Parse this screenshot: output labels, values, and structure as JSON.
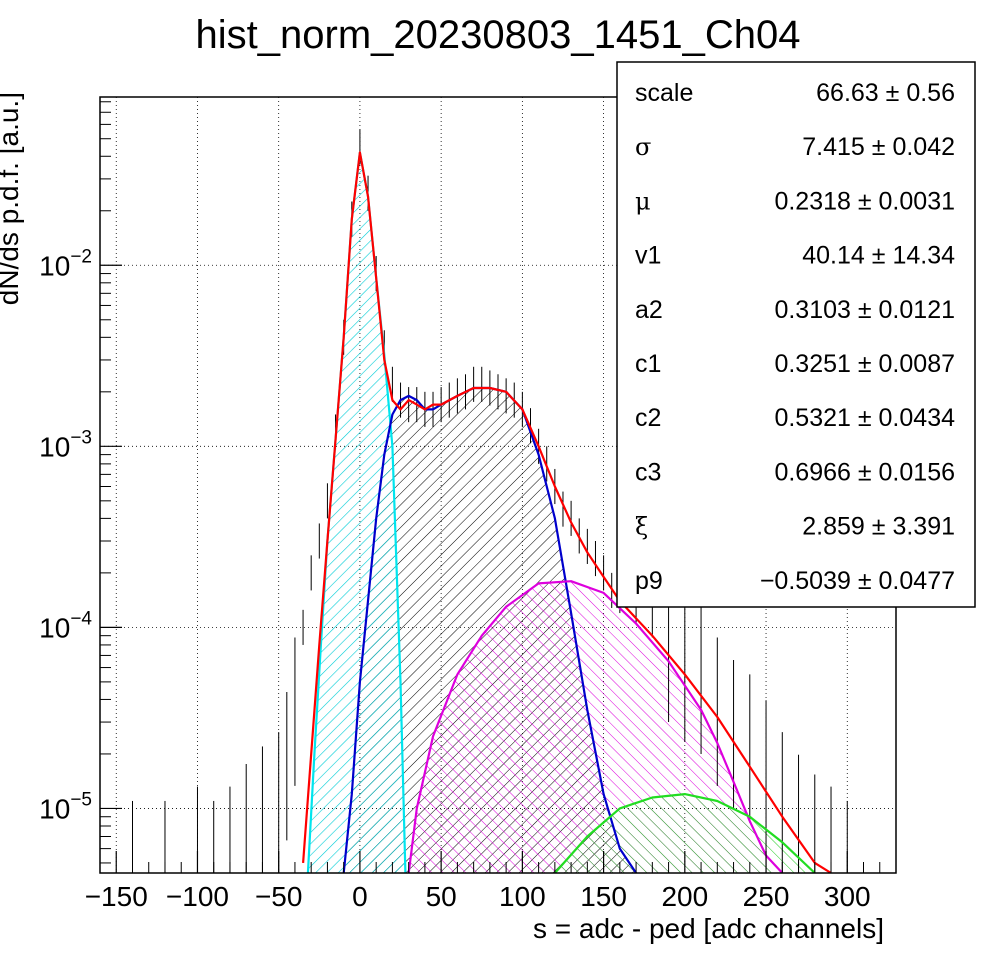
{
  "chart_data": {
    "type": "line",
    "title": "hist_norm_20230803_1451_Ch04",
    "xlabel": "s = adc - ped [adc channels]",
    "ylabel": "dN/ds p.d.f. [a.u.]",
    "xlim": [
      -160,
      330
    ],
    "ylim": [
      4.4e-06,
      0.085
    ],
    "yscale": "log",
    "grid": true,
    "x_ticks": [
      -150,
      -100,
      -50,
      0,
      50,
      100,
      150,
      200,
      250,
      300
    ],
    "x_tick_labels": [
      "−150",
      "−100",
      "−50",
      "0",
      "50",
      "100",
      "150",
      "200",
      "250",
      "300"
    ],
    "y_ticks": [
      1e-05,
      0.0001,
      0.001,
      0.01
    ],
    "y_tick_labels": [
      {
        "base": "10",
        "exp": "−5"
      },
      {
        "base": "10",
        "exp": "−4"
      },
      {
        "base": "10",
        "exp": "−3"
      },
      {
        "base": "10",
        "exp": "−2"
      }
    ],
    "series": [
      {
        "role": "total-fit",
        "color": "#ff0000",
        "x": [
          -35,
          -30,
          -25,
          -20,
          -15,
          -10,
          -5,
          0,
          5,
          10,
          15,
          20,
          25,
          30,
          35,
          40,
          45,
          50,
          60,
          70,
          80,
          90,
          100,
          110,
          120,
          130,
          140,
          150,
          160,
          180,
          200,
          220,
          240,
          260,
          280,
          290
        ],
        "y": [
          5e-06,
          2e-05,
          8e-05,
          0.0003,
          0.0011,
          0.004,
          0.018,
          0.042,
          0.024,
          0.0085,
          0.003,
          0.0018,
          0.0016,
          0.0018,
          0.0017,
          0.0016,
          0.0017,
          0.0017,
          0.0019,
          0.0021,
          0.0021,
          0.002,
          0.0016,
          0.001,
          0.0006,
          0.00038,
          0.00026,
          0.00019,
          0.00014,
          9e-05,
          5.5e-05,
          3.2e-05,
          1.7e-05,
          9e-06,
          5e-06,
          4e-06
        ]
      },
      {
        "role": "pedestal",
        "color": "#00e5ee",
        "x": [
          -32,
          -28,
          -24,
          -20,
          -15,
          -10,
          -5,
          0,
          5,
          10,
          15,
          20,
          25,
          28
        ],
        "y": [
          4.4e-06,
          2e-05,
          8e-05,
          0.0003,
          0.0011,
          0.004,
          0.018,
          0.042,
          0.024,
          0.0085,
          0.0032,
          0.001,
          5e-05,
          4.4e-06
        ]
      },
      {
        "role": "1-p.e.",
        "color": "#0000cc",
        "x": [
          -10,
          -5,
          0,
          5,
          10,
          15,
          20,
          25,
          30,
          35,
          40,
          45,
          50,
          60,
          70,
          80,
          90,
          100,
          110,
          120,
          130,
          140,
          150,
          160,
          170
        ],
        "y": [
          4.4e-06,
          1.2e-05,
          5e-05,
          0.00014,
          0.0004,
          0.0009,
          0.0015,
          0.0018,
          0.0019,
          0.0018,
          0.0016,
          0.0016,
          0.0017,
          0.0019,
          0.0021,
          0.0021,
          0.002,
          0.0016,
          0.0009,
          0.0004,
          0.00012,
          3.5e-05,
          1.2e-05,
          6e-06,
          4.4e-06
        ]
      },
      {
        "role": "2-p.e.",
        "color": "#dd00dd",
        "x": [
          30,
          35,
          45,
          60,
          75,
          90,
          110,
          130,
          150,
          170,
          190,
          210,
          220,
          230,
          240,
          250,
          260
        ],
        "y": [
          4.4e-06,
          1e-05,
          2.5e-05,
          5.5e-05,
          9e-05,
          0.00013,
          0.000175,
          0.00018,
          0.000155,
          0.000105,
          6.5e-05,
          3.5e-05,
          2.3e-05,
          1.4e-05,
          8.5e-06,
          5.5e-06,
          4.4e-06
        ]
      },
      {
        "role": "3-p.e.",
        "color": "#22dd22",
        "x": [
          120,
          140,
          160,
          180,
          200,
          220,
          240,
          260,
          280
        ],
        "y": [
          4.4e-06,
          7e-06,
          1e-05,
          1.15e-05,
          1.2e-05,
          1.1e-05,
          9e-06,
          6.5e-06,
          4.4e-06
        ]
      },
      {
        "role": "data",
        "color": "#000000",
        "x": [
          -140,
          -120,
          -100,
          -90,
          -80,
          -70,
          -60,
          -50,
          -45,
          -40,
          -35,
          -30,
          -25,
          -20,
          -15,
          -10,
          -5,
          0,
          5,
          10,
          15,
          20,
          25,
          30,
          35,
          40,
          45,
          50,
          55,
          60,
          65,
          70,
          75,
          80,
          85,
          90,
          95,
          100,
          105,
          110,
          115,
          120,
          125,
          130,
          135,
          140,
          145,
          150,
          155,
          160,
          170,
          180,
          190,
          200,
          210,
          220,
          230,
          240,
          250,
          260,
          270,
          280,
          290,
          300
        ],
        "y": [
          5e-06,
          5e-06,
          6e-06,
          5e-06,
          6e-06,
          8e-06,
          1e-05,
          1.2e-05,
          2e-05,
          4e-05,
          0.0001,
          0.0002,
          0.0003,
          0.0005,
          0.0012,
          0.004,
          0.018,
          0.045,
          0.025,
          0.009,
          0.0035,
          0.0022,
          0.0018,
          0.0017,
          0.0017,
          0.0016,
          0.0016,
          0.0017,
          0.0018,
          0.0019,
          0.002,
          0.0022,
          0.0022,
          0.0021,
          0.002,
          0.0019,
          0.0018,
          0.0016,
          0.0013,
          0.001,
          0.0008,
          0.0006,
          0.00045,
          0.0004,
          0.00032,
          0.00028,
          0.00024,
          0.0002,
          0.00016,
          0.00015,
          0.00013,
          0.00011,
          9e-05,
          7e-05,
          6e-05,
          4e-05,
          3e-05,
          2.5e-05,
          1.8e-05,
          1.2e-05,
          9e-06,
          7e-06,
          6e-06,
          5e-06
        ]
      }
    ],
    "stats": [
      {
        "name": "scale",
        "value": "66.63",
        "error": "0.56"
      },
      {
        "name": "σ",
        "value": "7.415",
        "error": "0.042"
      },
      {
        "name": "μ",
        "value": "0.2318",
        "error": "0.0031"
      },
      {
        "name": "v1",
        "value": "40.14",
        "error": "14.34"
      },
      {
        "name": "a2",
        "value": "0.3103",
        "error": "0.0121"
      },
      {
        "name": "c1",
        "value": "0.3251",
        "error": "0.0087"
      },
      {
        "name": "c2",
        "value": "0.5321",
        "error": "0.0434"
      },
      {
        "name": "c3",
        "value": "0.6966",
        "error": "0.0156"
      },
      {
        "name": "ξ",
        "value": "2.859",
        "error": "3.391"
      },
      {
        "name": "p9",
        "value": "−0.5039",
        "error": "0.0477"
      }
    ],
    "pm_symbol": "±"
  }
}
